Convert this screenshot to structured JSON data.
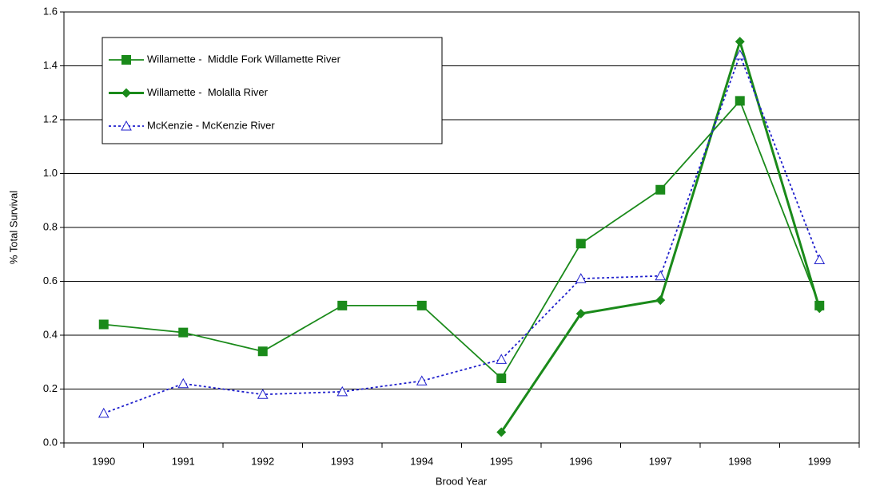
{
  "chart_data": {
    "type": "line",
    "x_label": "Brood Year",
    "y_label": "% Total Survival",
    "categories": [
      "1990",
      "1991",
      "1992",
      "1993",
      "1994",
      "1995",
      "1996",
      "1997",
      "1998",
      "1999"
    ],
    "series": [
      {
        "name": "Willamette -  Middle Fork Willamette River",
        "color": "#1a8a1a",
        "marker": "square",
        "line_style": "solid",
        "values": [
          0.44,
          0.41,
          0.34,
          0.51,
          0.51,
          0.24,
          0.74,
          0.94,
          1.27,
          0.51
        ]
      },
      {
        "name": "Willamette -  Molalla River",
        "color": "#1a8a1a",
        "marker": "diamond",
        "line_style": "bold",
        "values": [
          null,
          null,
          null,
          null,
          null,
          0.04,
          0.48,
          0.53,
          1.49,
          0.5
        ]
      },
      {
        "name": "McKenzie - McKenzie River",
        "color": "#1f1fcc",
        "marker": "triangle",
        "line_style": "dotted",
        "values": [
          0.11,
          0.22,
          0.18,
          0.19,
          0.23,
          0.31,
          0.61,
          0.62,
          1.44,
          0.68
        ]
      }
    ],
    "ylim": [
      0,
      1.6
    ],
    "yticks": [
      {
        "value": 0,
        "label": "0.0"
      },
      {
        "value": 0.2,
        "label": "0.2"
      },
      {
        "value": 0.4,
        "label": "0.4"
      },
      {
        "value": 0.6,
        "label": "0.6"
      },
      {
        "value": 0.8,
        "label": "0.8"
      },
      {
        "value": 1.0,
        "label": "1.0"
      },
      {
        "value": 1.2,
        "label": "1.2"
      },
      {
        "value": 1.4,
        "label": "1.4"
      },
      {
        "value": 1.6,
        "label": "1.6"
      }
    ],
    "grid": true,
    "legend": "top-left"
  }
}
